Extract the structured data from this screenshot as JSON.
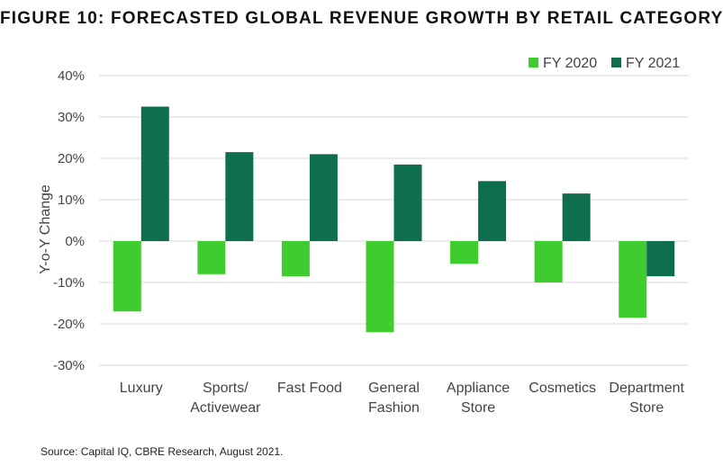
{
  "chart_data": {
    "type": "bar",
    "title": "FIGURE 10: FORECASTED GLOBAL REVENUE GROWTH BY RETAIL CATEGORY",
    "ylabel": "Y-o-Y Change",
    "xlabel": "",
    "ylim": [
      -30,
      40
    ],
    "yticks": [
      40,
      30,
      20,
      10,
      0,
      -10,
      -20,
      -30
    ],
    "ytick_labels": [
      "40%",
      "30%",
      "20%",
      "10%",
      "0%",
      "-10%",
      "-20%",
      "-30%"
    ],
    "grid": true,
    "legend_position": "top-right",
    "categories": [
      [
        "Luxury"
      ],
      [
        "Sports/",
        "Activewear"
      ],
      [
        "Fast Food"
      ],
      [
        "General",
        "Fashion"
      ],
      [
        "Appliance",
        "Store"
      ],
      [
        "Cosmetics"
      ],
      [
        "Department",
        "Store"
      ]
    ],
    "series": [
      {
        "name": "FY 2020",
        "color": "#3fcc2e",
        "values": [
          -17,
          -8,
          -8.5,
          -22,
          -5.5,
          -10,
          -18.5
        ]
      },
      {
        "name": "FY 2021",
        "color": "#0f6e50",
        "values": [
          32.5,
          21.5,
          21,
          18.5,
          14.5,
          11.5,
          -8.5
        ]
      }
    ]
  },
  "footer": {
    "source": "Source: Capital IQ, CBRE Research, August 2021."
  },
  "colors": {
    "grid": "#d9d9d9",
    "axis": "#bfbfbf"
  }
}
